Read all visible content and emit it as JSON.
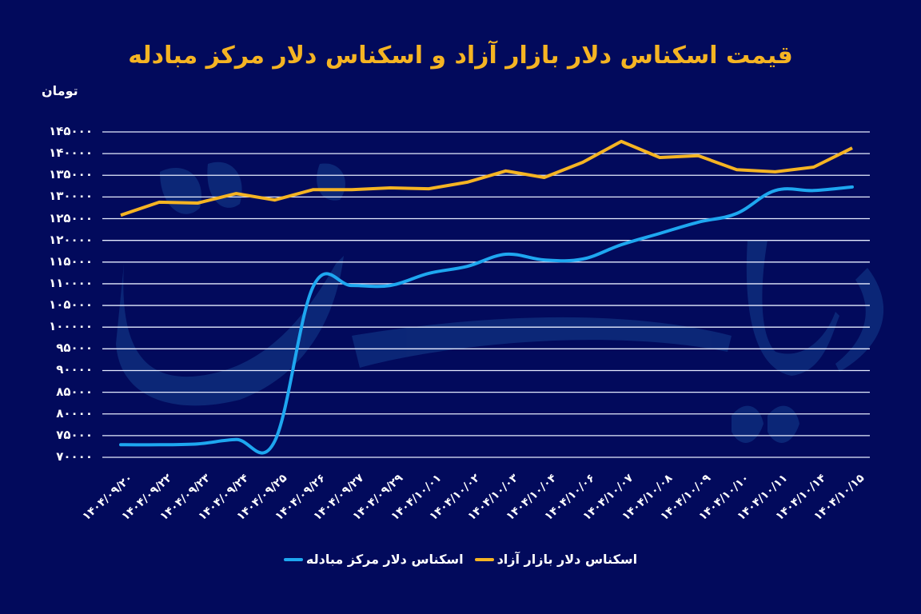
{
  "title": "قیمت اسکناس دلار بازار آزاد و اسکناس دلار مرکز مبادله",
  "unit_label": "تومان",
  "colors": {
    "background": "#020a5c",
    "free_market": "#f5b423",
    "exchange_center": "#1ea7f0",
    "grid": "#e6ecff",
    "watermark": "#0d2a7a"
  },
  "legend": [
    {
      "label": "اسکناس دلار بازار آزاد",
      "color": "#f5b423"
    },
    {
      "label": "اسکناس دلار مرکز مبادله",
      "color": "#1ea7f0"
    }
  ],
  "y_ticks": [
    "۱۴۵۰۰۰",
    "۱۴۰۰۰۰",
    "۱۳۵۰۰۰",
    "۱۳۰۰۰۰",
    "۱۲۵۰۰۰",
    "۱۲۰۰۰۰",
    "۱۱۵۰۰۰",
    "۱۱۰۰۰۰",
    "۱۰۵۰۰۰",
    "۱۰۰۰۰۰",
    "۹۵۰۰۰",
    "۹۰۰۰۰",
    "۸۵۰۰۰",
    "۸۰۰۰۰",
    "۷۵۰۰۰",
    "۷۰۰۰۰"
  ],
  "chart_data": {
    "type": "line",
    "title": "قیمت اسکناس دلار بازار آزاد و اسکناس دلار مرکز مبادله",
    "xlabel": "",
    "ylabel": "تومان",
    "ylim": [
      70000,
      145000
    ],
    "grid": true,
    "legend_position": "bottom",
    "categories": [
      "۱۴۰۴/۰۹/۲۰",
      "۱۴۰۴/۰۹/۲۲",
      "۱۴۰۴/۰۹/۲۳",
      "۱۴۰۴/۰۹/۲۴",
      "۱۴۰۴/۰۹/۲۵",
      "۱۴۰۴/۰۹/۲۶",
      "۱۴۰۴/۰۹/۲۷",
      "۱۴۰۴/۰۹/۲۹",
      "۱۴۰۴/۱۰/۰۱",
      "۱۴۰۴/۱۰/۰۲",
      "۱۴۰۴/۱۰/۰۳",
      "۱۴۰۴/۱۰/۰۴",
      "۱۴۰۴/۱۰/۰۶",
      "۱۴۰۴/۱۰/۰۷",
      "۱۴۰۴/۱۰/۰۸",
      "۱۴۰۴/۱۰/۰۹",
      "۱۴۰۴/۱۰/۱۰",
      "۱۴۰۴/۱۰/۱۱",
      "۱۴۰۴/۱۰/۱۴",
      "۱۴۰۴/۱۰/۱۵"
    ],
    "series": [
      {
        "name": "اسکناس دلار بازار آزاد",
        "color": "#f5b423",
        "values": [
          125800,
          128800,
          128600,
          130800,
          129300,
          131700,
          131700,
          132100,
          131900,
          133400,
          136000,
          134500,
          138000,
          142800,
          139100,
          139500,
          136300,
          135800,
          136900,
          141300
        ]
      },
      {
        "name": "اسکناس دلار مرکز مبادله",
        "color": "#1ea7f0",
        "values": [
          72900,
          72900,
          73100,
          74100,
          73700,
          109400,
          109600,
          109600,
          112400,
          114000,
          116800,
          115500,
          115700,
          119000,
          121600,
          124200,
          126200,
          131500,
          131500,
          132300
        ]
      }
    ]
  }
}
